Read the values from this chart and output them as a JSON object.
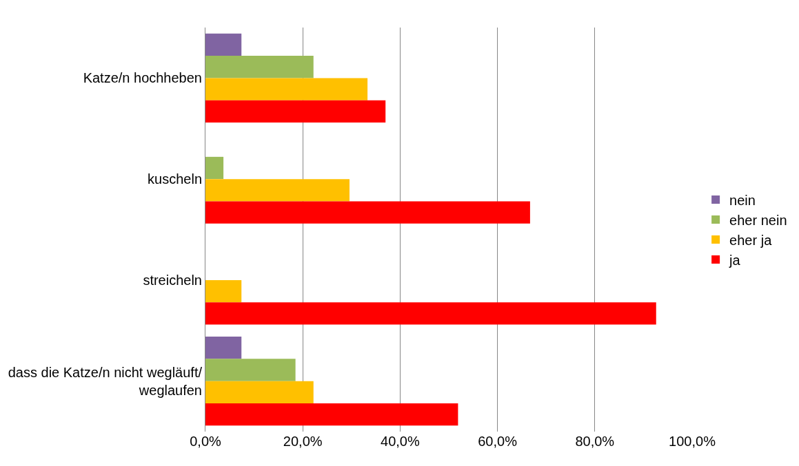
{
  "chart_data": {
    "type": "bar",
    "orientation": "horizontal",
    "categories": [
      "Katze/n hochheben",
      "kuscheln",
      "streicheln",
      "dass die Katze/n nicht wegläuft/ weglaufen"
    ],
    "series": [
      {
        "name": "nein",
        "color": "#8064a2",
        "values": [
          7.4,
          null,
          null,
          7.4
        ]
      },
      {
        "name": "eher nein",
        "color": "#9bbb59",
        "values": [
          22.2,
          3.7,
          null,
          18.5
        ]
      },
      {
        "name": "eher ja",
        "color": "#ffc000",
        "values": [
          33.3,
          29.6,
          7.4,
          22.2
        ]
      },
      {
        "name": "ja",
        "color": "#ff0000",
        "values": [
          37.0,
          66.7,
          92.6,
          51.9
        ]
      }
    ],
    "xlim": [
      0,
      100
    ],
    "xticks": [
      {
        "value": 0,
        "label": "0,0%"
      },
      {
        "value": 20,
        "label": "20,0%"
      },
      {
        "value": 40,
        "label": "40,0%"
      },
      {
        "value": 60,
        "label": "60,0%"
      },
      {
        "value": 80,
        "label": "80,0%"
      },
      {
        "value": 100,
        "label": "100,0%"
      }
    ],
    "grid": "x",
    "legend": "right"
  }
}
